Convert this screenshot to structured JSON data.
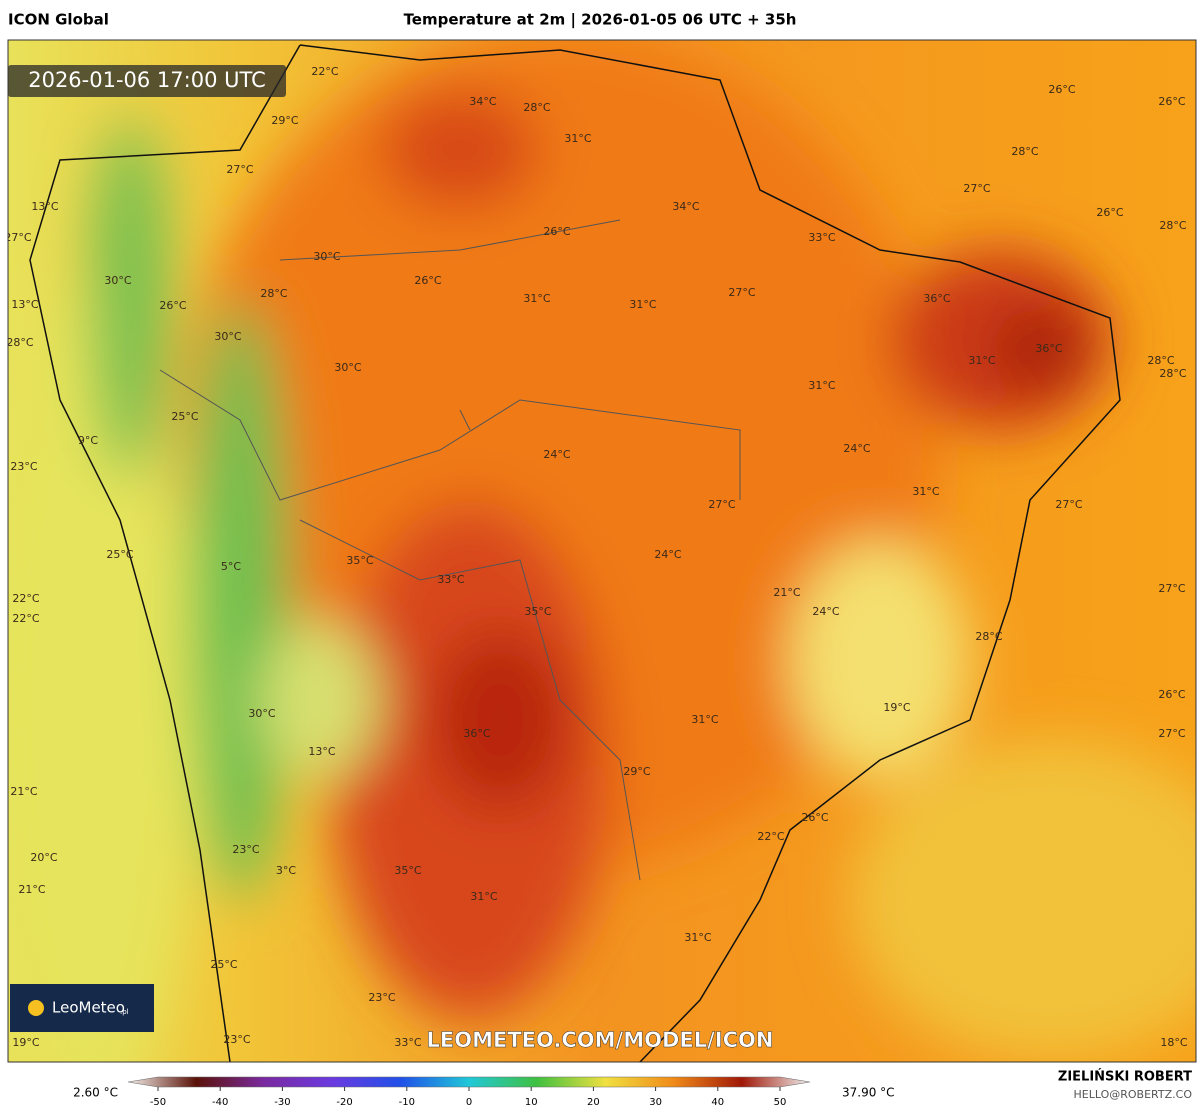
{
  "header": {
    "model": "ICON Global",
    "title": "Temperature at 2m | 2026-01-05 06 UTC + 35h"
  },
  "valid_time": "2026-01-06 17:00 UTC",
  "map_labels": [
    "22°C",
    "34°C",
    "28°C",
    "29°C",
    "31°C",
    "26°C",
    "26°C",
    "28°C",
    "27°C",
    "27°C",
    "34°C",
    "26°C",
    "13°C",
    "28°C",
    "27°C",
    "26°C",
    "33°C",
    "30°C",
    "30°C",
    "26°C",
    "28°C",
    "27°C",
    "26°C",
    "31°C",
    "31°C",
    "36°C",
    "13°C",
    "30°C",
    "28°C",
    "36°C",
    "30°C",
    "31°C",
    "28°C",
    "28°C",
    "31°C",
    "25°C",
    "9°C",
    "24°C",
    "24°C",
    "23°C",
    "31°C",
    "27°C",
    "27°C",
    "35°C",
    "24°C",
    "25°C",
    "5°C",
    "33°C",
    "21°C",
    "27°C",
    "22°C",
    "35°C",
    "24°C",
    "22°C",
    "28°C",
    "26°C",
    "19°C",
    "30°C",
    "31°C",
    "27°C",
    "36°C",
    "13°C",
    "29°C",
    "21°C",
    "26°C",
    "22°C",
    "23°C",
    "20°C",
    "35°C",
    "3°C",
    "21°C",
    "31°C",
    "31°C",
    "25°C",
    "23°C",
    "33°C",
    "19°C",
    "18°C",
    "23°C"
  ],
  "logo": {
    "name": "LeoMeteo",
    "suffix": ".pl"
  },
  "watermark": "LEOMETEO.COM/MODEL/ICON",
  "colorbar": {
    "min_label": "2.60 °C",
    "max_label": "37.90 °C",
    "ticks": [
      -50,
      -40,
      -30,
      -20,
      -10,
      0,
      10,
      20,
      30,
      40,
      50
    ]
  },
  "footer": {
    "author": "ZIELIŃSKI ROBERT",
    "email": "HELLO@ROBERTZ.CO"
  }
}
